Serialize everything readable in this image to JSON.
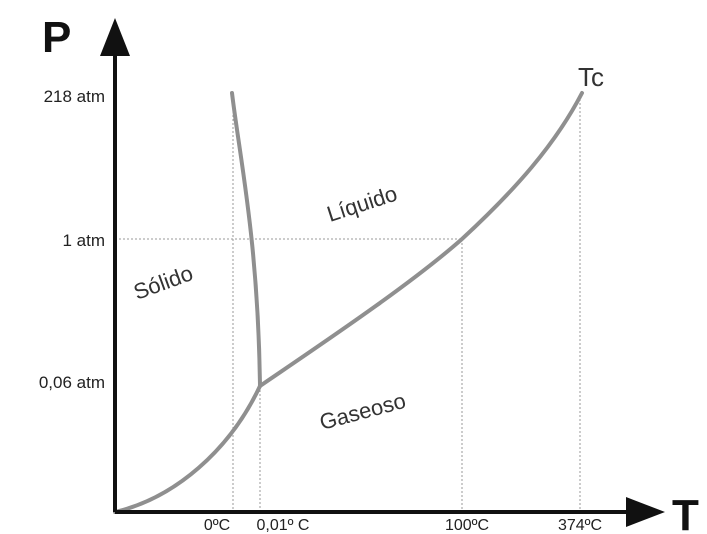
{
  "axes": {
    "y_letter": "P",
    "x_letter": "T"
  },
  "pressure_ticks": [
    "218 atm",
    "1 atm",
    "0,06 atm"
  ],
  "temperature_ticks": [
    "0ºC",
    "0,01º C",
    "100ºC",
    "374ºC"
  ],
  "regions": {
    "solid": "Sólido",
    "liquid": "Líquido",
    "gas": "Gaseoso"
  },
  "critical_point": "Tc",
  "colors": {
    "axis": "#111111",
    "curve": "#8f8f8f",
    "guide": "#9a9a9a"
  }
}
